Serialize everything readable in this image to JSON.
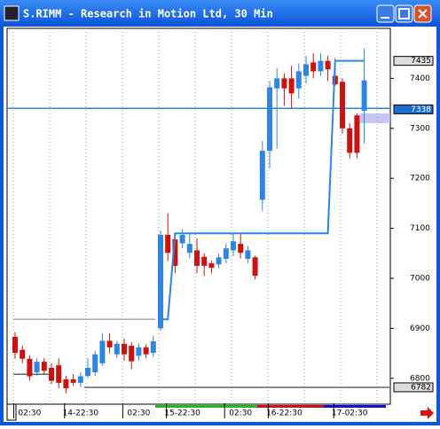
{
  "window": {
    "title": "S.RIMM - Research in Motion Ltd, 30 Min"
  },
  "chart_data": {
    "type": "candlestick",
    "x": [
      null,
      null,
      "02:30",
      null,
      null,
      null,
      null,
      null,
      null,
      "14-22:30",
      null,
      null,
      null,
      null,
      null,
      null,
      null,
      "02:30",
      null,
      null,
      null,
      null,
      null,
      "15-22:30",
      null,
      null,
      null,
      null,
      null,
      null,
      null,
      "02:30",
      null,
      null,
      null,
      null,
      null,
      "16-22:30",
      null,
      null,
      null,
      null,
      null,
      null,
      null,
      null,
      "17-02:30",
      null,
      null
    ],
    "open": [
      6883,
      6857,
      6839,
      6812,
      6833,
      6821,
      6826,
      6798,
      6798,
      6791,
      6805,
      6812,
      6830,
      6875,
      6848,
      6869,
      6865,
      6845,
      6862,
      6851,
      6900,
      7087,
      7078,
      7070,
      7051,
      7056,
      7043,
      7030,
      7028,
      7039,
      7056,
      7069,
      7039,
      7042,
      7157,
      7255,
      7380,
      7400,
      7400,
      7380,
      7405,
      7432,
      7414,
      7435,
      7405,
      7393,
      7300,
      7326,
      7335
    ],
    "high": [
      6892,
      6865,
      6846,
      6840,
      6840,
      6830,
      6840,
      6805,
      6808,
      6812,
      6840,
      6855,
      6890,
      6890,
      6875,
      6880,
      6872,
      6870,
      6868,
      6885,
      7095,
      7130,
      7090,
      7098,
      7090,
      7080,
      7050,
      7035,
      7050,
      7070,
      7090,
      7090,
      7065,
      7045,
      7275,
      7395,
      7420,
      7410,
      7425,
      7430,
      7445,
      7450,
      7450,
      7445,
      7440,
      7400,
      7310,
      7330,
      7460
    ],
    "low": [
      6839,
      6830,
      6795,
      6805,
      6808,
      6788,
      6780,
      6770,
      6785,
      6782,
      6800,
      6805,
      6825,
      6850,
      6840,
      6835,
      6818,
      6835,
      6840,
      6842,
      6895,
      7035,
      7010,
      7060,
      7040,
      7010,
      7005,
      7010,
      7020,
      7030,
      7045,
      7040,
      7030,
      6998,
      7135,
      7220,
      7260,
      7345,
      7340,
      7360,
      7390,
      7400,
      7405,
      7395,
      7385,
      7290,
      7240,
      7240,
      7270
    ],
    "close": [
      6851,
      6839,
      6804,
      6833,
      6815,
      6795,
      6791,
      6780,
      6791,
      6804,
      6821,
      6848,
      6875,
      6862,
      6869,
      6848,
      6834,
      6862,
      6848,
      6874,
      7087,
      7051,
      7025,
      7087,
      7069,
      7025,
      7025,
      7021,
      7042,
      7060,
      7074,
      7051,
      7056,
      7005,
      7255,
      7382,
      7400,
      7380,
      7370,
      7414,
      7428,
      7414,
      7435,
      7418,
      7388,
      7300,
      7251,
      7251,
      7396
    ],
    "indicator": [
      null,
      null,
      null,
      null,
      null,
      null,
      null,
      null,
      null,
      null,
      null,
      null,
      null,
      null,
      null,
      null,
      null,
      null,
      null,
      null,
      6918,
      6918,
      7090,
      7090,
      7090,
      7090,
      7090,
      7090,
      7090,
      7090,
      7090,
      7090,
      7090,
      7090,
      7090,
      7090,
      7090,
      7090,
      7090,
      7090,
      7090,
      7090,
      7090,
      7090,
      7435,
      7435,
      7435,
      7435,
      7435
    ],
    "levels": [
      7340,
      6918,
      6808,
      6782
    ],
    "price_labels": [
      7435,
      7338,
      6782
    ],
    "ylim": [
      6750,
      7500
    ],
    "yticks": [
      6800,
      6900,
      7000,
      7100,
      7200,
      7300,
      7400
    ],
    "up_color": "#2f86e0",
    "down_color": "#cc1111",
    "indicator_color": "#2f86e0"
  }
}
